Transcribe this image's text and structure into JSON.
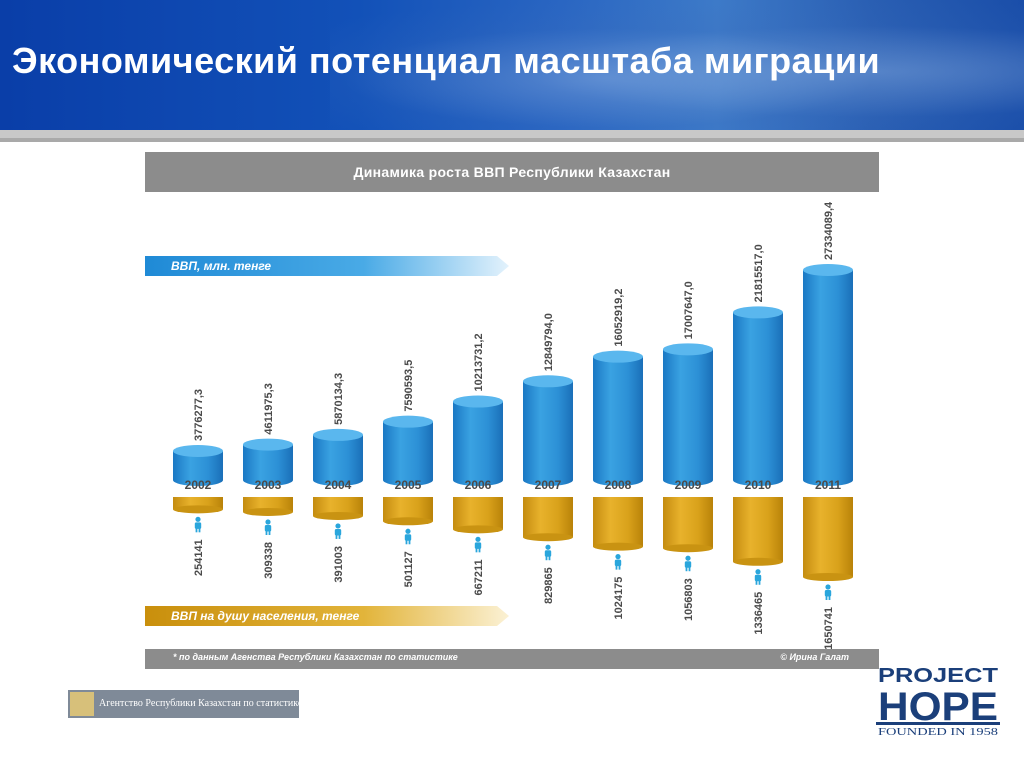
{
  "slide": {
    "title": "Экономический  потенциал  масштаба  миграции"
  },
  "chart_data": {
    "type": "bar",
    "title": "Динамика роста ВВП Республики Казахстан",
    "categories": [
      "2002",
      "2003",
      "2004",
      "2005",
      "2006",
      "2007",
      "2008",
      "2009",
      "2010",
      "2011"
    ],
    "series": [
      {
        "name": "ВВП, млн. тенге",
        "values": [
          3776277.3,
          4611975.3,
          5870134.3,
          7590593.5,
          10213731.2,
          12849794.0,
          16052919.2,
          17007647.0,
          21815517.0,
          27334089.4
        ],
        "labels": [
          "3776277,3",
          "4611975,3",
          "5870134,3",
          "7590593,5",
          "10213731,2",
          "12849794,0",
          "16052919,2",
          "17007647,0",
          "21815517,0",
          "27334089,4"
        ],
        "color": "#2f97dc"
      },
      {
        "name": "ВВП на душу населения, тенге",
        "values": [
          254141,
          309338,
          391003,
          501127,
          667211,
          829865,
          1024175,
          1056803,
          1336465,
          1650741
        ],
        "labels": [
          "254141",
          "309338",
          "391003",
          "501127",
          "667211",
          "829865",
          "1024175",
          "1056803",
          "1336465",
          "1650741"
        ],
        "color": "#d9a21b"
      }
    ],
    "footnote": "* по данным Агенства Республики Казахстан по статистике",
    "credit": "© Ирина Галат"
  },
  "logos": {
    "agency_text": "Агентство Республики Казахстан по статистике",
    "hope_line1": "PROJECT",
    "hope_line2": "HOPE",
    "hope_line3": "FOUNDED IN 1958"
  },
  "colors": {
    "header_blue": "#0d44ad",
    "bar_blue": "#2f97dc",
    "bar_gold": "#d9a21b",
    "bar_gray": "#8c8c8c",
    "hope_navy": "#1b3f7a"
  }
}
